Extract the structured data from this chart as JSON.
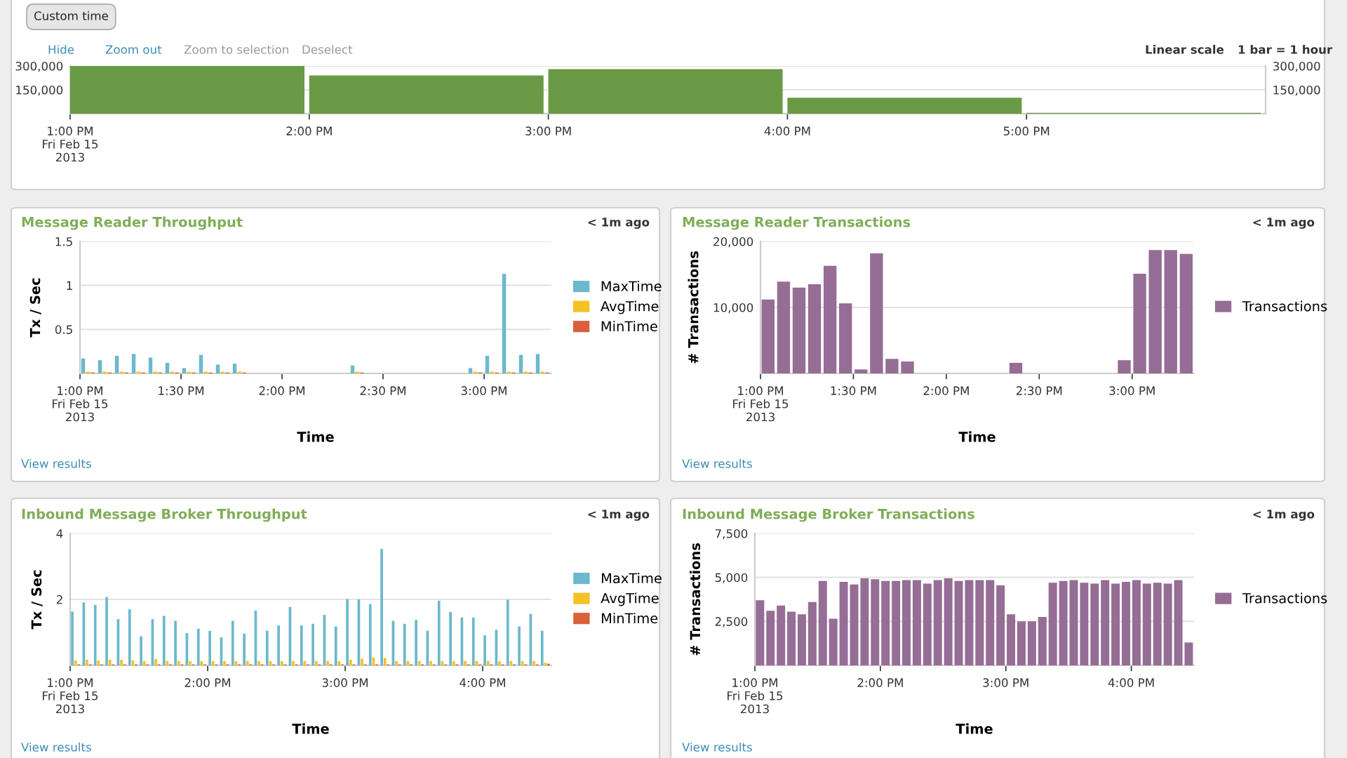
{
  "chart_data": [
    {
      "type": "bar",
      "annotations": [
        "Custom time",
        "Hide",
        "Zoom out",
        "Zoom to selection",
        "Deselect",
        "Linear scale",
        "1 bar = 1 hour"
      ],
      "x": [
        13.5,
        14.5,
        15.5,
        16.5,
        17.5
      ],
      "series": [
        {
          "color": "#6a9a45",
          "values": [
            300000,
            240000,
            280000,
            100000,
            5000
          ]
        }
      ],
      "xlim": [
        13,
        18
      ],
      "xticks": [
        {
          "value": 13,
          "label": "1:00 PM\nFri Feb 15\n2013"
        },
        {
          "value": 14,
          "label": "2:00 PM"
        },
        {
          "value": 15,
          "label": "3:00 PM"
        },
        {
          "value": 16,
          "label": "4:00 PM"
        },
        {
          "value": 17,
          "label": "5:00 PM"
        }
      ],
      "ylim": [
        0,
        300000
      ],
      "yticks": [
        {
          "value": 150000,
          "label": "150,000"
        },
        {
          "value": 300000,
          "label": "300,000"
        }
      ],
      "y2lim": [
        0,
        300000
      ],
      "y2ticks": [
        {
          "value": 150000,
          "label": "150,000"
        },
        {
          "value": 300000,
          "label": "300,000"
        }
      ],
      "grid": "y",
      "legend": false
    },
    {
      "type": "bar",
      "title": "Message Reader Throughput",
      "xlabel": "Time",
      "ylabel": "Tx / Sec",
      "annotations": [
        "< 1m ago",
        "View results"
      ],
      "x": [
        13.0417,
        13.125,
        13.2083,
        13.2917,
        13.375,
        13.4583,
        13.5417,
        13.625,
        13.7083,
        13.7917,
        14.375,
        14.9583,
        15.0417,
        15.125,
        15.2083,
        15.2917
      ],
      "series": [
        {
          "name": "MaxTime",
          "color": "#6cb8cc",
          "values": [
            0.17,
            0.15,
            0.2,
            0.22,
            0.18,
            0.12,
            0.06,
            0.21,
            0.1,
            0.11,
            0.09,
            0.06,
            0.2,
            1.13,
            0.21,
            0.22
          ]
        },
        {
          "name": "AvgTime",
          "color": "#f5c125",
          "values": [
            0.02,
            0.02,
            0.02,
            0.02,
            0.02,
            0.02,
            0.02,
            0.02,
            0.02,
            0.02,
            0.02,
            0.02,
            0.02,
            0.02,
            0.02,
            0.02
          ]
        },
        {
          "name": "MinTime",
          "color": "#d9603b",
          "values": [
            0.01,
            0.01,
            0.01,
            0.01,
            0.01,
            0.01,
            0.01,
            0.01,
            0.01,
            0.01,
            0.01,
            0.01,
            0.01,
            0.01,
            0.01,
            0.01
          ]
        }
      ],
      "xlim": [
        13,
        15.3333
      ],
      "xticks": [
        {
          "value": 13,
          "label": "1:00 PM\nFri Feb 15\n2013"
        },
        {
          "value": 13.5,
          "label": "1:30 PM"
        },
        {
          "value": 14,
          "label": "2:00 PM"
        },
        {
          "value": 14.5,
          "label": "2:30 PM"
        },
        {
          "value": 15,
          "label": "3:00 PM"
        }
      ],
      "ylim": [
        0,
        1.5
      ],
      "yticks": [
        0.5,
        1,
        1.5
      ],
      "grid": "y",
      "legend": "right"
    },
    {
      "type": "bar",
      "title": "Message Reader Transactions",
      "xlabel": "Time",
      "ylabel": "# Transactions",
      "annotations": [
        "< 1m ago",
        "View results"
      ],
      "x": [
        13.0417,
        13.125,
        13.2083,
        13.2917,
        13.375,
        13.4583,
        13.5417,
        13.625,
        13.7083,
        13.7917,
        14.375,
        14.9583,
        15.0417,
        15.125,
        15.2083,
        15.2917
      ],
      "series": [
        {
          "name": "Transactions",
          "color": "#956d95",
          "values": [
            11200,
            13900,
            13000,
            13500,
            16300,
            10600,
            600,
            18200,
            2200,
            1800,
            1600,
            2000,
            15100,
            18700,
            18700,
            18100
          ]
        }
      ],
      "xlim": [
        13,
        15.3333
      ],
      "xticks": [
        {
          "value": 13,
          "label": "1:00 PM\nFri Feb 15\n2013"
        },
        {
          "value": 13.5,
          "label": "1:30 PM"
        },
        {
          "value": 14,
          "label": "2:00 PM"
        },
        {
          "value": 14.5,
          "label": "2:30 PM"
        },
        {
          "value": 15,
          "label": "3:00 PM"
        }
      ],
      "ylim": [
        0,
        20000
      ],
      "yticks": [
        {
          "value": 10000,
          "label": "10,000"
        },
        {
          "value": 20000,
          "label": "20,000"
        }
      ],
      "grid": "y",
      "legend": "right"
    },
    {
      "type": "bar",
      "title": "Inbound Message Broker Throughput",
      "xlabel": "Time",
      "ylabel": "Tx / Sec",
      "annotations": [
        "< 1m ago",
        "View results"
      ],
      "x": [
        13.0417,
        13.125,
        13.2083,
        13.2917,
        13.375,
        13.4583,
        13.5417,
        13.625,
        13.7083,
        13.7917,
        13.875,
        13.9583,
        14.0417,
        14.125,
        14.2083,
        14.2917,
        14.375,
        14.4583,
        14.5417,
        14.625,
        14.7083,
        14.7917,
        14.875,
        14.9583,
        15.0417,
        15.125,
        15.2083,
        15.2917,
        15.375,
        15.4583,
        15.5417,
        15.625,
        15.7083,
        15.7917,
        15.875,
        15.9583,
        16.0417,
        16.125,
        16.2083,
        16.2917,
        16.375,
        16.4583
      ],
      "series": [
        {
          "name": "MaxTime",
          "color": "#6cb8cc",
          "values": [
            1.63,
            1.91,
            1.83,
            2.07,
            1.4,
            1.7,
            0.88,
            1.4,
            1.5,
            1.35,
            0.98,
            1.11,
            1.05,
            0.85,
            1.35,
            0.96,
            1.66,
            1.05,
            1.21,
            1.77,
            1.21,
            1.26,
            1.53,
            1.18,
            2.01,
            2.0,
            1.86,
            3.53,
            1.35,
            1.26,
            1.38,
            1.05,
            1.96,
            1.62,
            1.45,
            1.45,
            0.91,
            1.08,
            1.99,
            1.18,
            1.56,
            1.05
          ]
        },
        {
          "name": "AvgTime",
          "color": "#f5c125",
          "values": [
            0.15,
            0.17,
            0.15,
            0.17,
            0.17,
            0.15,
            0.13,
            0.19,
            0.13,
            0.13,
            0.13,
            0.13,
            0.13,
            0.13,
            0.13,
            0.13,
            0.13,
            0.13,
            0.13,
            0.13,
            0.13,
            0.13,
            0.13,
            0.13,
            0.17,
            0.2,
            0.24,
            0.22,
            0.13,
            0.13,
            0.13,
            0.13,
            0.13,
            0.13,
            0.13,
            0.13,
            0.13,
            0.13,
            0.13,
            0.13,
            0.13,
            0.08
          ]
        },
        {
          "name": "MinTime",
          "color": "#d9603b",
          "values": [
            0.03,
            0.03,
            0.03,
            0.03,
            0.03,
            0.03,
            0.03,
            0.03,
            0.03,
            0.03,
            0.03,
            0.03,
            0.03,
            0.03,
            0.03,
            0.03,
            0.03,
            0.03,
            0.03,
            0.03,
            0.03,
            0.03,
            0.03,
            0.03,
            0.03,
            0.03,
            0.03,
            0.03,
            0.03,
            0.03,
            0.03,
            0.03,
            0.03,
            0.03,
            0.03,
            0.03,
            0.03,
            0.03,
            0.03,
            0.03,
            0.03,
            0.05
          ]
        }
      ],
      "xlim": [
        13,
        16.5
      ],
      "xticks": [
        {
          "value": 13,
          "label": "1:00 PM\nFri Feb 15\n2013"
        },
        {
          "value": 14,
          "label": "2:00 PM"
        },
        {
          "value": 15,
          "label": "3:00 PM"
        },
        {
          "value": 16,
          "label": "4:00 PM"
        }
      ],
      "ylim": [
        0,
        4
      ],
      "yticks": [
        2,
        4
      ],
      "grid": "y",
      "legend": "right"
    },
    {
      "type": "bar",
      "title": "Inbound Message Broker Transactions",
      "xlabel": "Time",
      "ylabel": "# Transactions",
      "annotations": [
        "< 1m ago",
        "View results"
      ],
      "x": [
        13.0417,
        13.125,
        13.2083,
        13.2917,
        13.375,
        13.4583,
        13.5417,
        13.625,
        13.7083,
        13.7917,
        13.875,
        13.9583,
        14.0417,
        14.125,
        14.2083,
        14.2917,
        14.375,
        14.4583,
        14.5417,
        14.625,
        14.7083,
        14.7917,
        14.875,
        14.9583,
        15.0417,
        15.125,
        15.2083,
        15.2917,
        15.375,
        15.4583,
        15.5417,
        15.625,
        15.7083,
        15.7917,
        15.875,
        15.9583,
        16.0417,
        16.125,
        16.2083,
        16.2917,
        16.375,
        16.4583
      ],
      "series": [
        {
          "name": "Transactions",
          "color": "#956d95",
          "values": [
            3700,
            3100,
            3400,
            3050,
            2900,
            3600,
            4800,
            2650,
            4750,
            4600,
            4950,
            4900,
            4800,
            4800,
            4850,
            4850,
            4650,
            4850,
            4950,
            4800,
            4850,
            4850,
            4850,
            4550,
            2900,
            2500,
            2500,
            2750,
            4700,
            4800,
            4850,
            4700,
            4650,
            4850,
            4650,
            4750,
            4850,
            4650,
            4700,
            4650,
            4850,
            1300
          ]
        }
      ],
      "xlim": [
        13,
        16.5
      ],
      "xticks": [
        {
          "value": 13,
          "label": "1:00 PM\nFri Feb 15\n2013"
        },
        {
          "value": 14,
          "label": "2:00 PM"
        },
        {
          "value": 15,
          "label": "3:00 PM"
        },
        {
          "value": 16,
          "label": "4:00 PM"
        }
      ],
      "ylim": [
        0,
        7500
      ],
      "yticks": [
        {
          "value": 2500,
          "label": "2,500"
        },
        {
          "value": 5000,
          "label": "5,000"
        },
        {
          "value": 7500,
          "label": "7,500"
        }
      ],
      "grid": "y",
      "legend": "right"
    }
  ]
}
